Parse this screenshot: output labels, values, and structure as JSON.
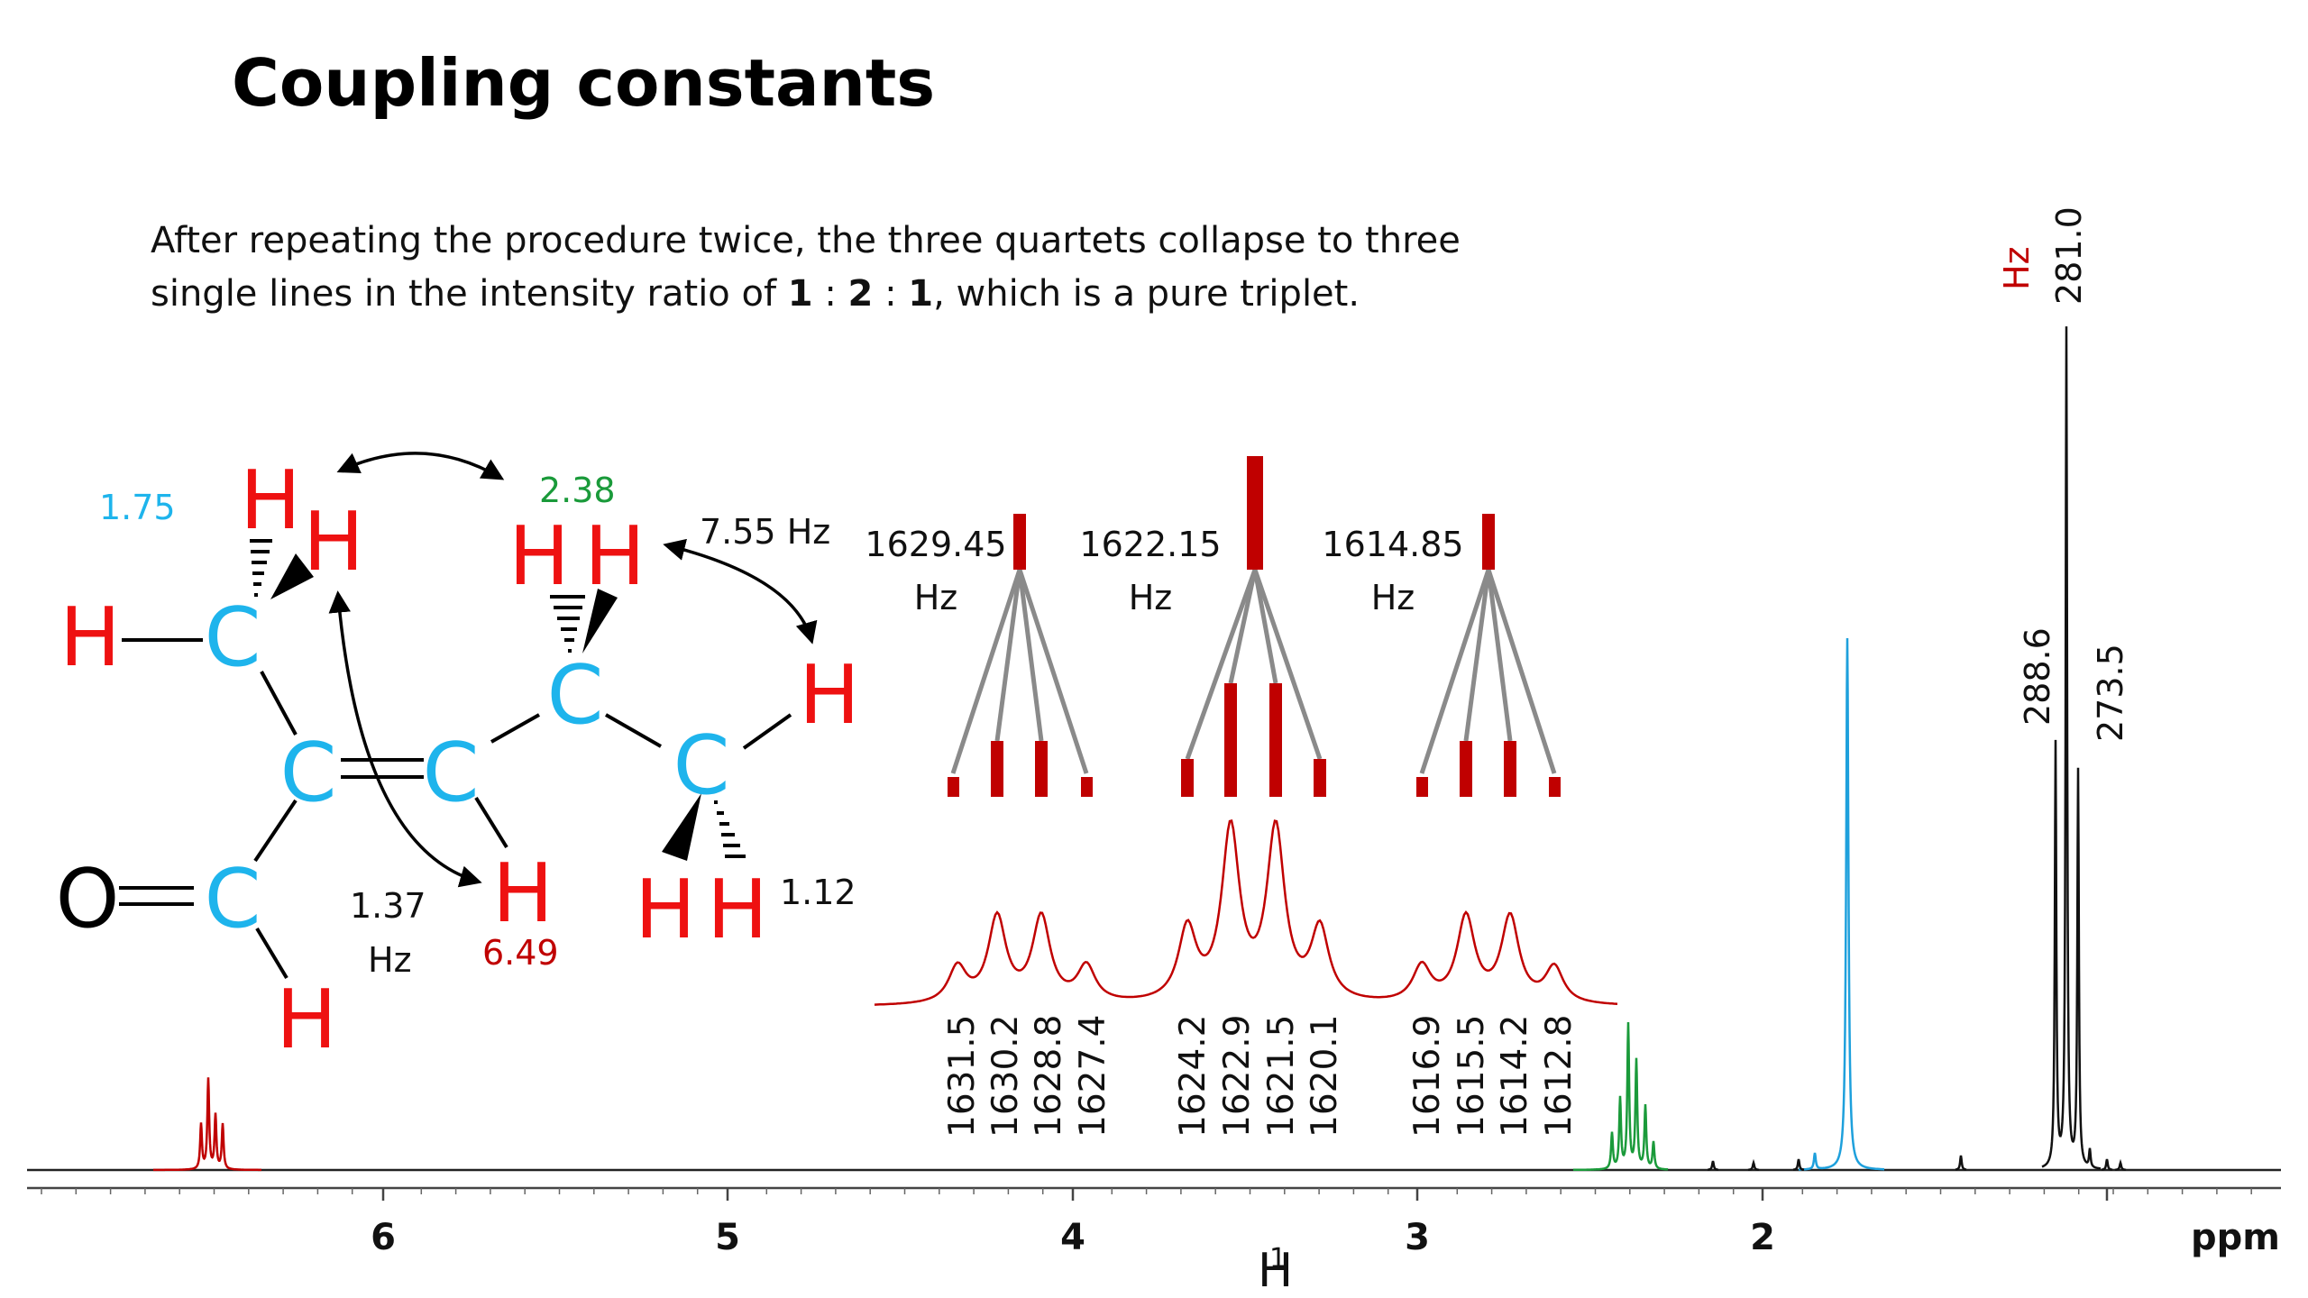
{
  "title": "Coupling constants",
  "caption": {
    "line1": "After repeating the procedure twice, the three quartets collapse to three",
    "line2_pre": "single lines in the intensity ratio of ",
    "r1": "1",
    "sep1": " : ",
    "r2": "2",
    "sep2": " : ",
    "r3": "1",
    "line2_post": ", which is a pure triplet."
  },
  "colors": {
    "red": "#c00000",
    "hydrogen": "#ee1111",
    "carbon": "#1eb4ec",
    "green": "#1a9a3a",
    "blue": "#1ea0dc",
    "gray": "#8a8a8a"
  },
  "molecule": {
    "atoms": {
      "hydrogen": "H",
      "carbon": "C",
      "oxygen": "O"
    },
    "shifts": {
      "ch3_left": "1.75",
      "ch2": "2.38",
      "vinyl_h": "6.49",
      "ch3_right": "1.12"
    },
    "couplings": {
      "j_ch2_ch3": "7.55 Hz",
      "j_allylic_value": "1.37",
      "j_allylic_unit": "Hz"
    }
  },
  "tree": {
    "centers": [
      {
        "value": "1629.45",
        "unit": "Hz"
      },
      {
        "value": "1622.15",
        "unit": "Hz"
      },
      {
        "value": "1614.85",
        "unit": "Hz"
      }
    ]
  },
  "line_labels": [
    [
      "1631.5",
      "1630.2",
      "1628.8",
      "1627.4"
    ],
    [
      "1624.2",
      "1622.9",
      "1621.5",
      "1620.1"
    ],
    [
      "1616.9",
      "1615.5",
      "1614.2",
      "1612.8"
    ]
  ],
  "ch3_peaks": {
    "unit": "Hz",
    "center": "281.0",
    "left": "288.6",
    "right": "273.5"
  },
  "axis": {
    "ticks": [
      "6",
      "5",
      "4",
      "3",
      "2"
    ],
    "nucleus": "1H",
    "nucleus_mass": "1",
    "nucleus_symbol": "H",
    "unit": "ppm"
  }
}
